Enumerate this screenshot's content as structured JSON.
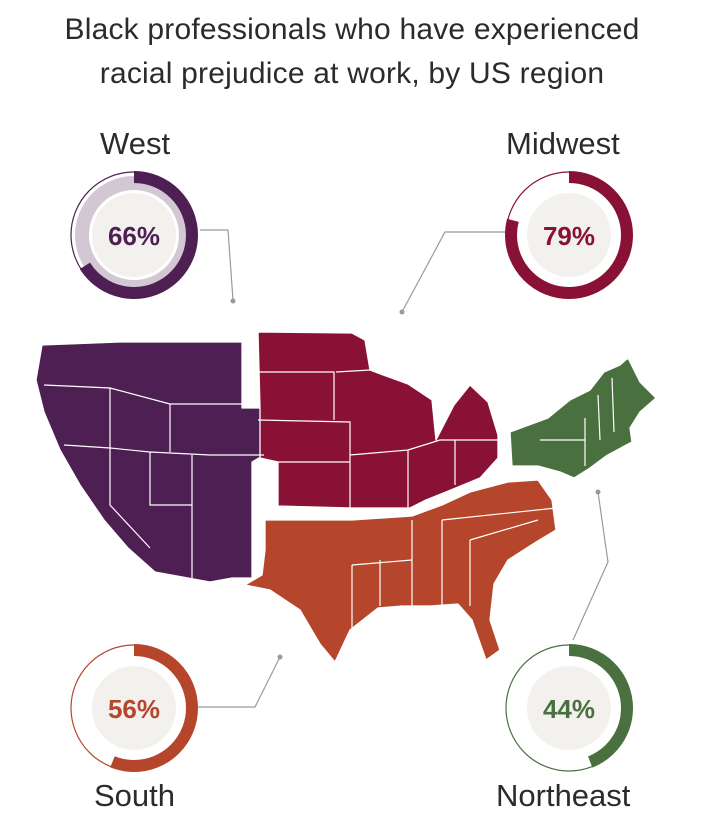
{
  "title_line1": "Black professionals who have experienced",
  "title_line2": "racial prejudice at work, by US region",
  "chart_data": {
    "type": "donut",
    "title": "Black professionals who have experienced racial prejudice at work, by US region",
    "series": [
      {
        "region": "West",
        "value": 66,
        "label": "66%",
        "color": "#4e1f52"
      },
      {
        "region": "Midwest",
        "value": 79,
        "label": "79%",
        "color": "#8a1136"
      },
      {
        "region": "South",
        "value": 56,
        "label": "56%",
        "color": "#b5462c"
      },
      {
        "region": "Northeast",
        "value": 44,
        "label": "44%",
        "color": "#4a7040"
      }
    ]
  }
}
